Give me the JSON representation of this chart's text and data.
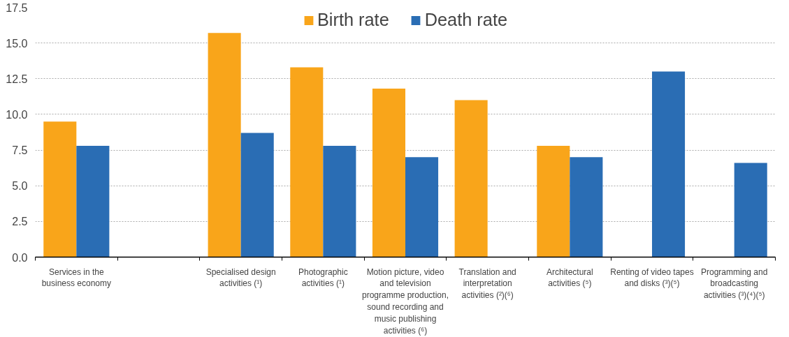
{
  "chart_data": {
    "type": "bar",
    "categories": [
      "Services in the business economy",
      null,
      "Specialised design activities (¹)",
      "Photographic activities (¹)",
      "Motion picture, video and television programme production, sound recording and music publishing activities (⁶)",
      "Translation and interpretation activities (²)(⁶)",
      "Architectural activities (⁵)",
      "Renting of video tapes and disks (³)(⁵)",
      "Programming and broadcasting activities (³)(⁴)(⁵)"
    ],
    "series": [
      {
        "name": "Birth rate",
        "color": "#f9a51a",
        "values": [
          9.5,
          null,
          15.7,
          13.3,
          11.8,
          11.0,
          7.8,
          null,
          null
        ]
      },
      {
        "name": "Death rate",
        "color": "#2a6db4",
        "values": [
          7.8,
          null,
          8.7,
          7.8,
          7.0,
          null,
          7.0,
          13.0,
          6.6
        ]
      }
    ],
    "ylim": [
      0,
      17.5
    ],
    "yticks": [
      {
        "value": 0,
        "label": "0.0"
      },
      {
        "value": 2.5,
        "label": "2.5"
      },
      {
        "value": 5,
        "label": "5.0"
      },
      {
        "value": 7.5,
        "label": "7.5"
      },
      {
        "value": 10,
        "label": "10.0"
      },
      {
        "value": 12.5,
        "label": "12.5"
      },
      {
        "value": 15,
        "label": "15.0"
      },
      {
        "value": 17.5,
        "label": "17.5"
      }
    ],
    "grid": "y",
    "legend": "top"
  }
}
